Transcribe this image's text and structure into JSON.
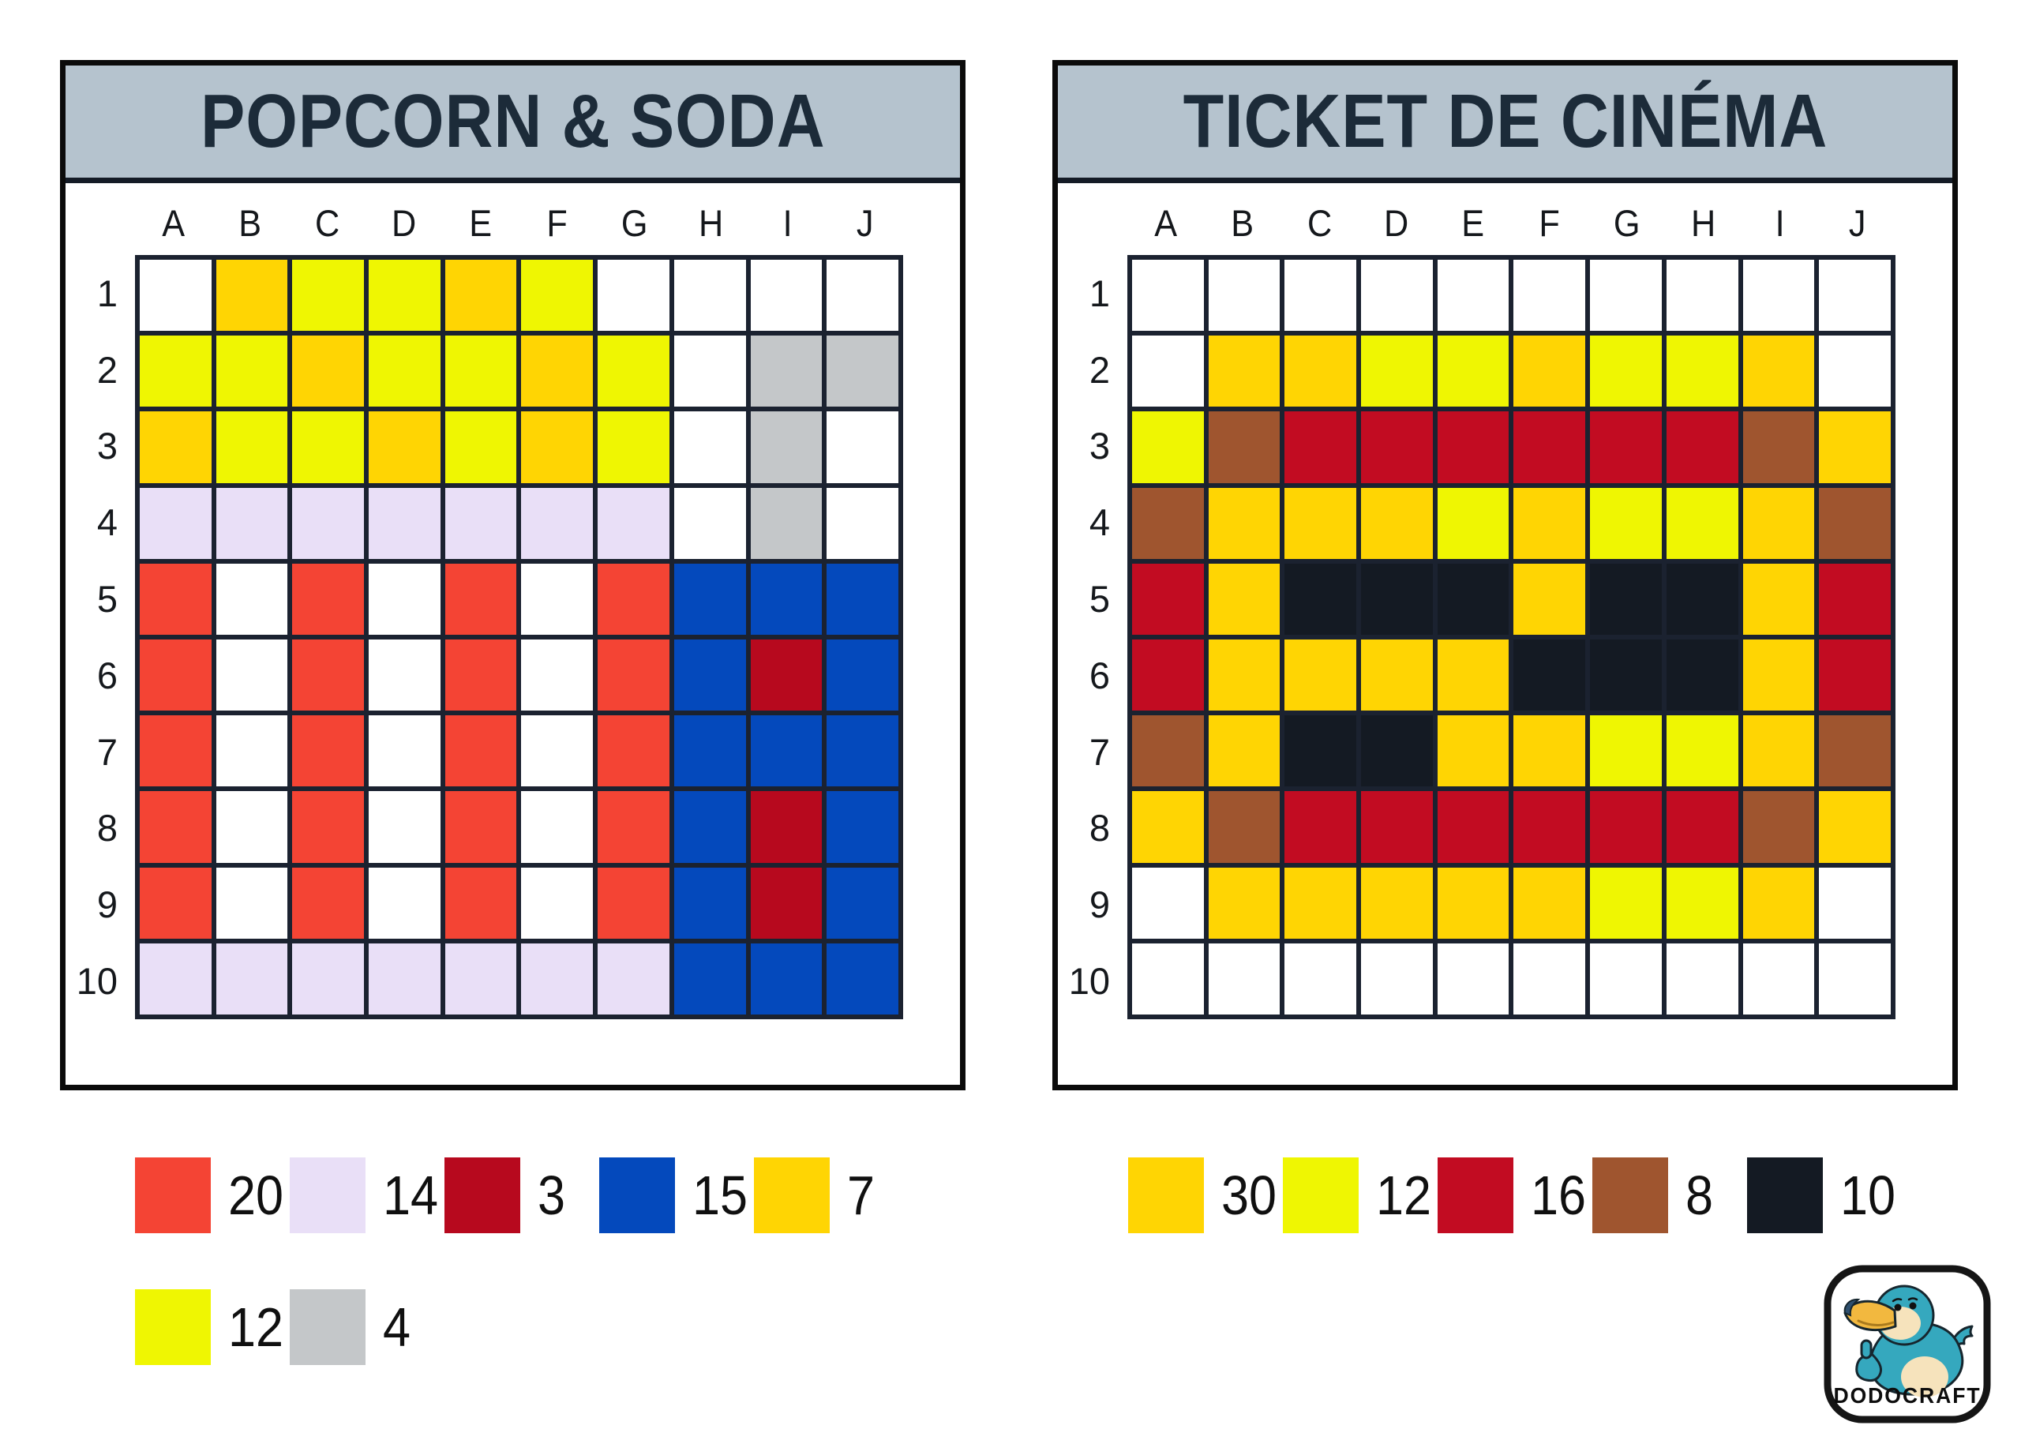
{
  "ui": {
    "band_color": "#B5C3CE",
    "title_color": "#1C2B39",
    "grid_line_color": "#1B2230",
    "frame_color": "#0B0B0B"
  },
  "palette": {
    "W": "#FFFFFF",
    "GOLD": "#FFD503",
    "YEL": "#EFF602",
    "LAV": "#E9DFF7",
    "RED": "#F44434",
    "CRM": "#B7091E",
    "CRM2": "#C20C22",
    "BLU": "#0449BC",
    "GRY": "#C4C7C9",
    "BRN": "#9F552F",
    "BLK": "#141A23"
  },
  "panels": [
    {
      "title": "POPCORN & SODA",
      "columns": [
        "A",
        "B",
        "C",
        "D",
        "E",
        "F",
        "G",
        "H",
        "I",
        "J"
      ],
      "rows": [
        "1",
        "2",
        "3",
        "4",
        "5",
        "6",
        "7",
        "8",
        "9",
        "10"
      ],
      "cells": [
        [
          "W",
          "GOLD",
          "YEL",
          "YEL",
          "GOLD",
          "YEL",
          "W",
          "W",
          "W",
          "W"
        ],
        [
          "YEL",
          "YEL",
          "GOLD",
          "YEL",
          "YEL",
          "GOLD",
          "YEL",
          "W",
          "GRY",
          "GRY"
        ],
        [
          "GOLD",
          "YEL",
          "YEL",
          "GOLD",
          "YEL",
          "GOLD",
          "YEL",
          "W",
          "GRY",
          "W"
        ],
        [
          "LAV",
          "LAV",
          "LAV",
          "LAV",
          "LAV",
          "LAV",
          "LAV",
          "W",
          "GRY",
          "W"
        ],
        [
          "RED",
          "W",
          "RED",
          "W",
          "RED",
          "W",
          "RED",
          "BLU",
          "BLU",
          "BLU"
        ],
        [
          "RED",
          "W",
          "RED",
          "W",
          "RED",
          "W",
          "RED",
          "BLU",
          "CRM",
          "BLU"
        ],
        [
          "RED",
          "W",
          "RED",
          "W",
          "RED",
          "W",
          "RED",
          "BLU",
          "BLU",
          "BLU"
        ],
        [
          "RED",
          "W",
          "RED",
          "W",
          "RED",
          "W",
          "RED",
          "BLU",
          "CRM",
          "BLU"
        ],
        [
          "RED",
          "W",
          "RED",
          "W",
          "RED",
          "W",
          "RED",
          "BLU",
          "CRM",
          "BLU"
        ],
        [
          "LAV",
          "LAV",
          "LAV",
          "LAV",
          "LAV",
          "LAV",
          "LAV",
          "BLU",
          "BLU",
          "BLU"
        ]
      ],
      "legend": [
        {
          "color": "RED",
          "count": "20"
        },
        {
          "color": "LAV",
          "count": "14"
        },
        {
          "color": "CRM",
          "count": "3"
        },
        {
          "color": "BLU",
          "count": "15"
        },
        {
          "color": "GOLD",
          "count": "7"
        },
        {
          "color": "YEL",
          "count": "12"
        },
        {
          "color": "GRY",
          "count": "4"
        }
      ]
    },
    {
      "title": "TICKET DE CINÉMA",
      "columns": [
        "A",
        "B",
        "C",
        "D",
        "E",
        "F",
        "G",
        "H",
        "I",
        "J"
      ],
      "rows": [
        "1",
        "2",
        "3",
        "4",
        "5",
        "6",
        "7",
        "8",
        "9",
        "10"
      ],
      "cells": [
        [
          "W",
          "W",
          "W",
          "W",
          "W",
          "W",
          "W",
          "W",
          "W",
          "W"
        ],
        [
          "W",
          "GOLD",
          "GOLD",
          "YEL",
          "YEL",
          "GOLD",
          "YEL",
          "YEL",
          "GOLD",
          "W"
        ],
        [
          "YEL",
          "BRN",
          "CRM2",
          "CRM2",
          "CRM2",
          "CRM2",
          "CRM2",
          "CRM2",
          "BRN",
          "GOLD"
        ],
        [
          "BRN",
          "GOLD",
          "GOLD",
          "GOLD",
          "YEL",
          "GOLD",
          "YEL",
          "YEL",
          "GOLD",
          "BRN"
        ],
        [
          "CRM2",
          "GOLD",
          "BLK",
          "BLK",
          "BLK",
          "GOLD",
          "BLK",
          "BLK",
          "GOLD",
          "CRM2"
        ],
        [
          "CRM2",
          "GOLD",
          "GOLD",
          "GOLD",
          "GOLD",
          "BLK",
          "BLK",
          "BLK",
          "GOLD",
          "CRM2"
        ],
        [
          "BRN",
          "GOLD",
          "BLK",
          "BLK",
          "GOLD",
          "GOLD",
          "YEL",
          "YEL",
          "GOLD",
          "BRN"
        ],
        [
          "GOLD",
          "BRN",
          "CRM2",
          "CRM2",
          "CRM2",
          "CRM2",
          "CRM2",
          "CRM2",
          "BRN",
          "GOLD"
        ],
        [
          "W",
          "GOLD",
          "GOLD",
          "GOLD",
          "GOLD",
          "GOLD",
          "YEL",
          "YEL",
          "GOLD",
          "W"
        ],
        [
          "W",
          "W",
          "W",
          "W",
          "W",
          "W",
          "W",
          "W",
          "W",
          "W"
        ]
      ],
      "legend": [
        {
          "color": "GOLD",
          "count": "30"
        },
        {
          "color": "YEL",
          "count": "12"
        },
        {
          "color": "CRM2",
          "count": "16"
        },
        {
          "color": "BRN",
          "count": "8"
        },
        {
          "color": "BLK",
          "count": "10"
        }
      ]
    }
  ],
  "logo": {
    "brand": "DODOCRAFT"
  }
}
